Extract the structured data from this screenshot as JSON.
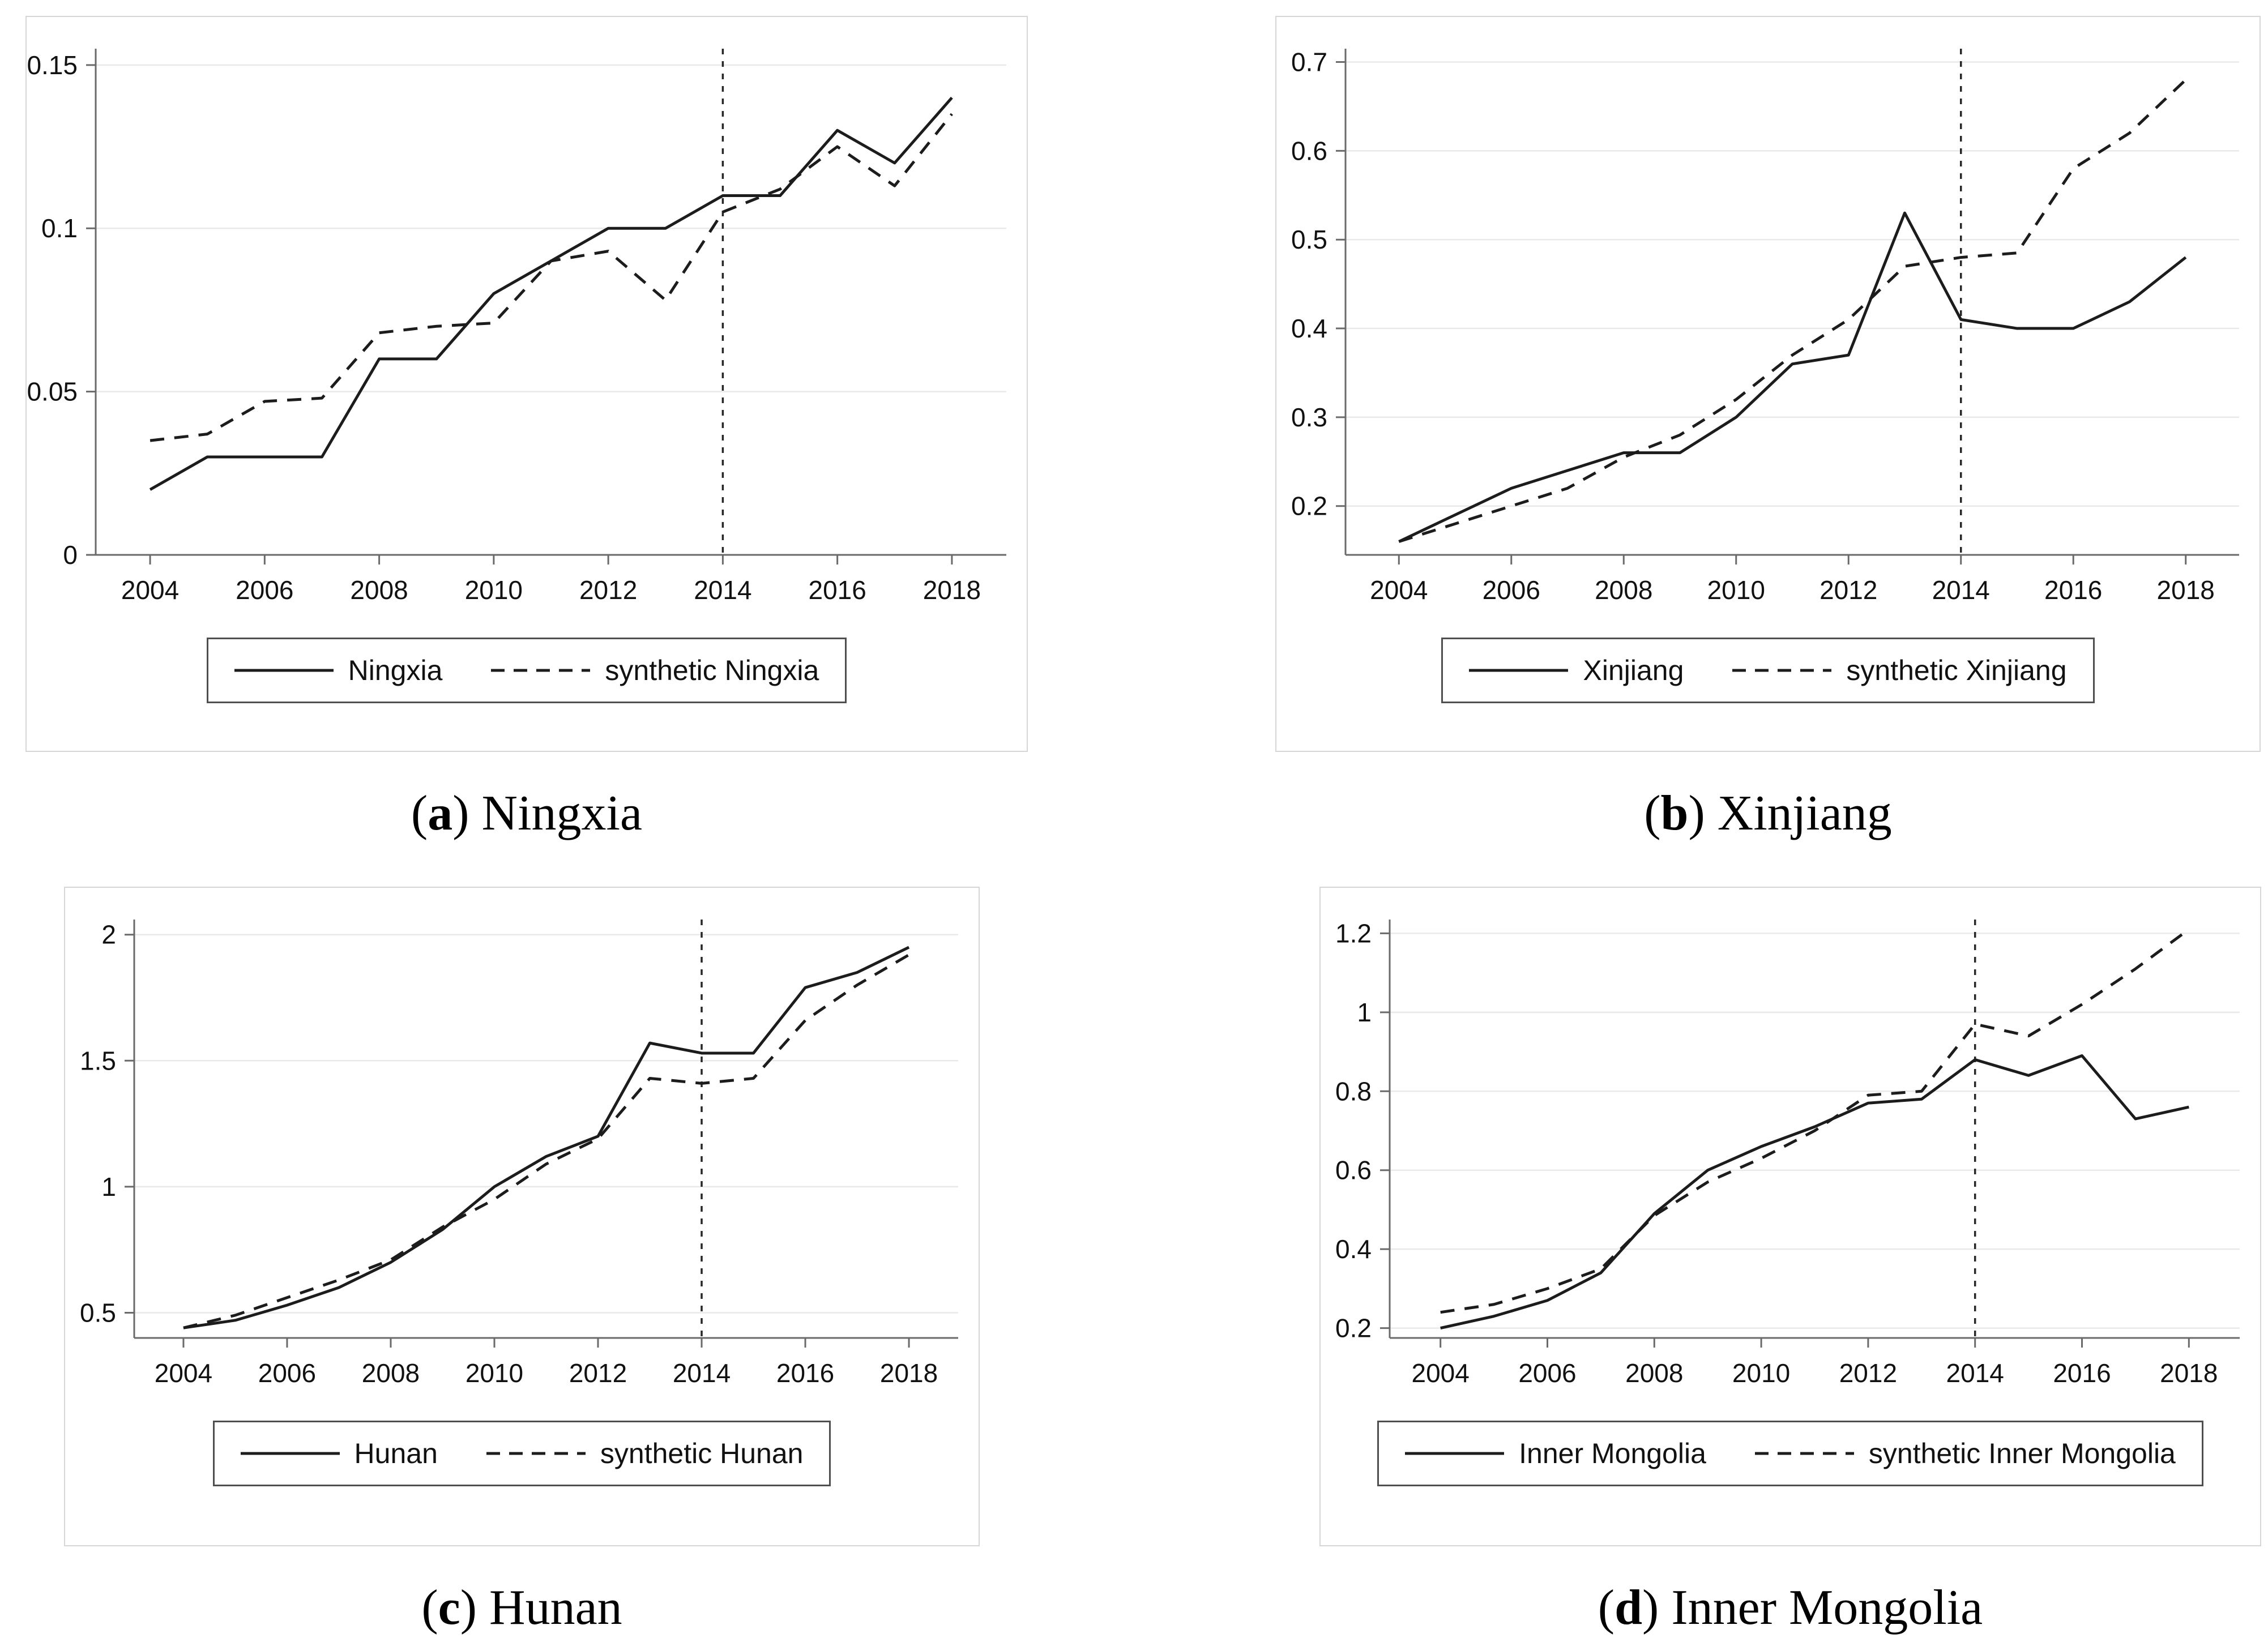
{
  "style": {
    "series_color": "#1c1c1c",
    "grid_color": "#e9e9e9",
    "axis_color": "#6a6a6a",
    "treatment_line_color": "#262626",
    "background": "#ffffff"
  },
  "chart_data": [
    {
      "id": "a",
      "type": "line",
      "caption": {
        "paren_open": "(",
        "letter": "a",
        "paren_close": ")",
        "title": "Ningxia"
      },
      "x": [
        2004,
        2005,
        2006,
        2007,
        2008,
        2009,
        2010,
        2011,
        2012,
        2013,
        2014,
        2015,
        2016,
        2017,
        2018
      ],
      "xticks": [
        2004,
        2006,
        2008,
        2010,
        2012,
        2014,
        2016,
        2018
      ],
      "treatment_year": 2014,
      "ylim": [
        0,
        0.155
      ],
      "yticks": [
        {
          "value": 0,
          "label": "0"
        },
        {
          "value": 0.05,
          "label": "0.05"
        },
        {
          "value": 0.1,
          "label": "0.1"
        },
        {
          "value": 0.15,
          "label": "0.15"
        }
      ],
      "legend_position": "bottom-center",
      "grid": true,
      "series": [
        {
          "name": "Ningxia",
          "style": "solid",
          "values": [
            0.02,
            0.03,
            0.03,
            0.03,
            0.06,
            0.06,
            0.08,
            0.09,
            0.1,
            0.1,
            0.11,
            0.11,
            0.13,
            0.12,
            0.14
          ]
        },
        {
          "name": "synthetic Ningxia",
          "style": "dashed",
          "values": [
            0.035,
            0.037,
            0.047,
            0.048,
            0.068,
            0.07,
            0.071,
            0.09,
            0.093,
            0.078,
            0.105,
            0.112,
            0.125,
            0.113,
            0.135
          ]
        }
      ]
    },
    {
      "id": "b",
      "type": "line",
      "caption": {
        "paren_open": "(",
        "letter": "b",
        "paren_close": ")",
        "title": "Xinjiang"
      },
      "x": [
        2004,
        2005,
        2006,
        2007,
        2008,
        2009,
        2010,
        2011,
        2012,
        2013,
        2014,
        2015,
        2016,
        2017,
        2018
      ],
      "xticks": [
        2004,
        2006,
        2008,
        2010,
        2012,
        2014,
        2016,
        2018
      ],
      "treatment_year": 2014,
      "ylim": [
        0.145,
        0.715
      ],
      "yticks": [
        {
          "value": 0.2,
          "label": "0.2"
        },
        {
          "value": 0.3,
          "label": "0.3"
        },
        {
          "value": 0.4,
          "label": "0.4"
        },
        {
          "value": 0.5,
          "label": "0.5"
        },
        {
          "value": 0.6,
          "label": "0.6"
        },
        {
          "value": 0.7,
          "label": "0.7"
        }
      ],
      "legend_position": "bottom-center",
      "grid": true,
      "series": [
        {
          "name": "Xinjiang",
          "style": "solid",
          "values": [
            0.16,
            0.19,
            0.22,
            0.24,
            0.26,
            0.26,
            0.3,
            0.36,
            0.37,
            0.53,
            0.41,
            0.4,
            0.4,
            0.43,
            0.48
          ]
        },
        {
          "name": "synthetic Xinjiang",
          "style": "dashed",
          "values": [
            0.16,
            0.18,
            0.2,
            0.22,
            0.255,
            0.28,
            0.32,
            0.37,
            0.41,
            0.47,
            0.48,
            0.485,
            0.58,
            0.62,
            0.68
          ]
        }
      ]
    },
    {
      "id": "c",
      "type": "line",
      "caption": {
        "paren_open": "(",
        "letter": "c",
        "paren_close": ")",
        "title": "Hunan"
      },
      "x": [
        2004,
        2005,
        2006,
        2007,
        2008,
        2009,
        2010,
        2011,
        2012,
        2013,
        2014,
        2015,
        2016,
        2017,
        2018
      ],
      "xticks": [
        2004,
        2006,
        2008,
        2010,
        2012,
        2014,
        2016,
        2018
      ],
      "treatment_year": 2014,
      "ylim": [
        0.4,
        2.06
      ],
      "yticks": [
        {
          "value": 0.5,
          "label": "0.5"
        },
        {
          "value": 1,
          "label": "1"
        },
        {
          "value": 1.5,
          "label": "1.5"
        },
        {
          "value": 2,
          "label": "2"
        }
      ],
      "legend_position": "bottom-center",
      "grid": true,
      "series": [
        {
          "name": "Hunan",
          "style": "solid",
          "values": [
            0.44,
            0.47,
            0.53,
            0.6,
            0.7,
            0.83,
            1.0,
            1.12,
            1.2,
            1.57,
            1.53,
            1.53,
            1.79,
            1.85,
            1.95
          ]
        },
        {
          "name": "synthetic Hunan",
          "style": "dashed",
          "values": [
            0.44,
            0.49,
            0.56,
            0.63,
            0.71,
            0.84,
            0.95,
            1.09,
            1.19,
            1.43,
            1.41,
            1.43,
            1.66,
            1.8,
            1.92
          ]
        }
      ]
    },
    {
      "id": "d",
      "type": "line",
      "caption": {
        "paren_open": "(",
        "letter": "d",
        "paren_close": ")",
        "title": "Inner Mongolia"
      },
      "x": [
        2004,
        2005,
        2006,
        2007,
        2008,
        2009,
        2010,
        2011,
        2012,
        2013,
        2014,
        2015,
        2016,
        2017,
        2018
      ],
      "xticks": [
        2004,
        2006,
        2008,
        2010,
        2012,
        2014,
        2016,
        2018
      ],
      "treatment_year": 2014,
      "ylim": [
        0.175,
        1.235
      ],
      "yticks": [
        {
          "value": 0.2,
          "label": "0.2"
        },
        {
          "value": 0.4,
          "label": "0.4"
        },
        {
          "value": 0.6,
          "label": "0.6"
        },
        {
          "value": 0.8,
          "label": "0.8"
        },
        {
          "value": 1,
          "label": "1"
        },
        {
          "value": 1.2,
          "label": "1.2"
        }
      ],
      "legend_position": "bottom-center",
      "grid": true,
      "series": [
        {
          "name": "Inner Mongolia",
          "style": "solid",
          "values": [
            0.2,
            0.23,
            0.27,
            0.34,
            0.49,
            0.6,
            0.66,
            0.71,
            0.77,
            0.78,
            0.88,
            0.84,
            0.89,
            0.73,
            0.76
          ]
        },
        {
          "name": "synthetic Inner Mongolia",
          "style": "dashed",
          "values": [
            0.24,
            0.26,
            0.3,
            0.35,
            0.485,
            0.57,
            0.63,
            0.7,
            0.79,
            0.8,
            0.97,
            0.94,
            1.02,
            1.11,
            1.21
          ]
        }
      ]
    }
  ]
}
